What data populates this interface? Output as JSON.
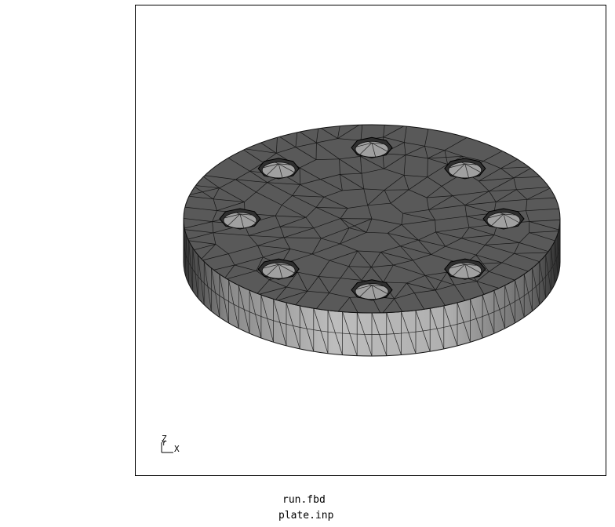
{
  "viewport": {
    "model_name": "circular plate with 8 bolt holes (tetrahedral mesh)",
    "colors": {
      "top_face": "#595959",
      "side_face": "#a8a8a8",
      "hole_inner": "#9a9a9a",
      "mesh_lines": "#111111",
      "border": "#000000",
      "background": "#ffffff"
    },
    "axes": {
      "z_label": "Z",
      "y_label": "Y",
      "x_label": "X"
    }
  },
  "files": {
    "run": "run.fbd",
    "input": "plate.inp"
  }
}
